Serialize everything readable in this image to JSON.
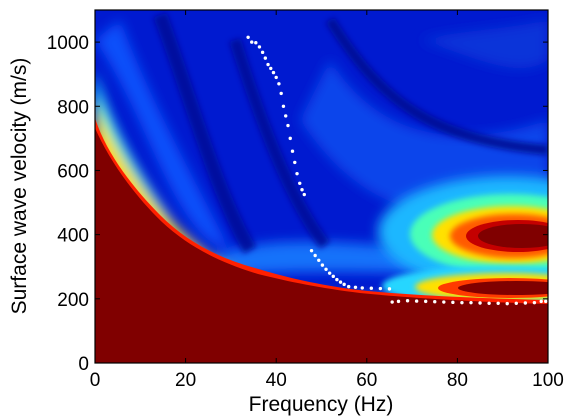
{
  "chart_data": {
    "type": "heatmap",
    "title": "",
    "xlabel": "Frequency (Hz)",
    "ylabel": "Surface wave velocity (m/s)",
    "xlim": [
      0,
      100
    ],
    "ylim": [
      0,
      1100
    ],
    "xticks": [
      "0",
      "20",
      "40",
      "60",
      "80",
      "100"
    ],
    "yticks": [
      "0",
      "200",
      "400",
      "600",
      "800",
      "1000"
    ],
    "xtick_values": [
      0,
      20,
      40,
      60,
      80,
      100
    ],
    "ytick_values": [
      0,
      200,
      400,
      600,
      800,
      1000
    ],
    "colormap": "jet",
    "colors": {
      "low": "#00008f",
      "mid": "#00ffff",
      "high": "#800000"
    },
    "grid": false,
    "legend": "none",
    "picked_points": {
      "color": "#ffffff",
      "higher_mode": [
        [
          33.8,
          1015
        ],
        [
          34.6,
          1000
        ],
        [
          35.5,
          998
        ],
        [
          36.3,
          985
        ],
        [
          37.0,
          968
        ],
        [
          37.6,
          950
        ],
        [
          38.2,
          930
        ],
        [
          38.8,
          918
        ],
        [
          39.4,
          905
        ],
        [
          40.0,
          890
        ],
        [
          40.6,
          870
        ],
        [
          41.1,
          840
        ],
        [
          41.6,
          800
        ],
        [
          42.1,
          770
        ],
        [
          42.6,
          740
        ],
        [
          43.1,
          700
        ],
        [
          43.6,
          660
        ],
        [
          44.1,
          625
        ],
        [
          44.6,
          590
        ],
        [
          45.2,
          560
        ],
        [
          45.7,
          540
        ],
        [
          46.2,
          525
        ]
      ],
      "fundamental_mode": [
        [
          47.8,
          350
        ],
        [
          48.6,
          335
        ],
        [
          49.4,
          320
        ],
        [
          50.2,
          305
        ],
        [
          51.0,
          292
        ],
        [
          51.8,
          280
        ],
        [
          52.6,
          270
        ],
        [
          53.4,
          260
        ],
        [
          54.2,
          252
        ],
        [
          55.0,
          245
        ],
        [
          56.0,
          238
        ],
        [
          57.5,
          236
        ],
        [
          59.0,
          234
        ],
        [
          61.0,
          233
        ],
        [
          63.0,
          232
        ],
        [
          65.0,
          231
        ],
        [
          65.6,
          190
        ],
        [
          67.0,
          192
        ],
        [
          69.0,
          194
        ],
        [
          71.0,
          193
        ],
        [
          73.0,
          192
        ],
        [
          75.0,
          191
        ],
        [
          77.0,
          190
        ],
        [
          79.0,
          189
        ],
        [
          81.0,
          188
        ],
        [
          83.0,
          188
        ],
        [
          85.0,
          187
        ],
        [
          87.0,
          186
        ],
        [
          89.0,
          186
        ],
        [
          91.0,
          185
        ],
        [
          93.0,
          186
        ],
        [
          95.0,
          187
        ],
        [
          97.0,
          188
        ],
        [
          98.5,
          192
        ],
        [
          99.5,
          192
        ]
      ]
    }
  }
}
